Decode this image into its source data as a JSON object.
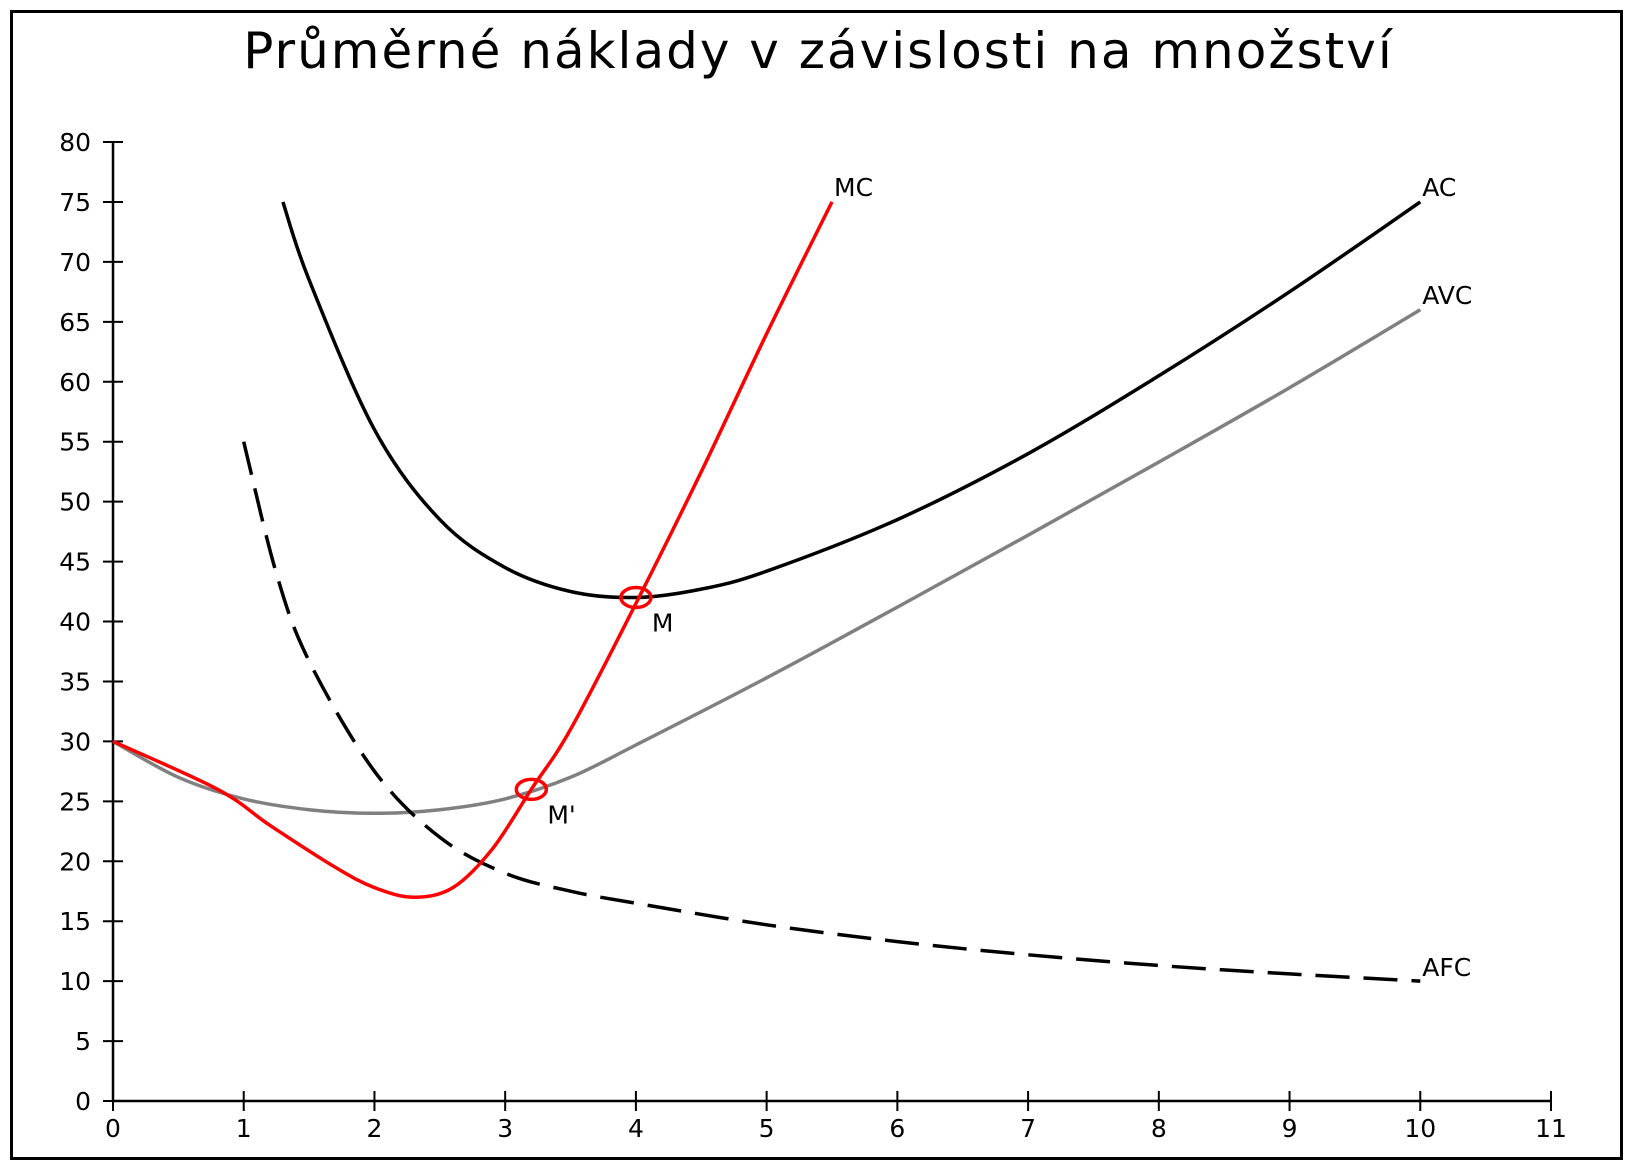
{
  "chart_data": {
    "type": "line",
    "title": "Průměrné náklady v závislosti na množství",
    "xlabel": "",
    "ylabel": "",
    "xlim": [
      0,
      11
    ],
    "ylim": [
      0,
      80
    ],
    "x_ticks": [
      "0",
      "1",
      "2",
      "3",
      "4",
      "5",
      "6",
      "7",
      "8",
      "9",
      "10",
      "11"
    ],
    "y_ticks": [
      "0",
      "5",
      "10",
      "15",
      "20",
      "25",
      "30",
      "35",
      "40",
      "45",
      "50",
      "55",
      "60",
      "65",
      "70",
      "75",
      "80"
    ],
    "grid": false,
    "series": [
      {
        "name": "MC",
        "color": "#ff0000",
        "style": "solid",
        "points": [
          [
            0,
            30
          ],
          [
            0.8,
            26
          ],
          [
            1.2,
            23
          ],
          [
            1.7,
            19.5
          ],
          [
            2.0,
            17.8
          ],
          [
            2.3,
            17
          ],
          [
            2.6,
            17.8
          ],
          [
            2.9,
            21
          ],
          [
            3.2,
            26
          ],
          [
            3.5,
            31
          ],
          [
            4.0,
            41.5
          ],
          [
            4.5,
            52.5
          ],
          [
            5.0,
            64
          ],
          [
            5.5,
            75
          ]
        ]
      },
      {
        "name": "AC",
        "color": "#000000",
        "style": "solid",
        "points": [
          [
            1.3,
            75
          ],
          [
            1.5,
            68.5
          ],
          [
            2.0,
            56
          ],
          [
            2.5,
            48.5
          ],
          [
            3.0,
            44.5
          ],
          [
            3.5,
            42.5
          ],
          [
            4.0,
            42
          ],
          [
            4.5,
            42.7
          ],
          [
            5.0,
            44.2
          ],
          [
            6.0,
            48.5
          ],
          [
            7.0,
            54
          ],
          [
            8.0,
            60.5
          ],
          [
            9.0,
            67.5
          ],
          [
            10.0,
            75
          ]
        ]
      },
      {
        "name": "AVC",
        "color": "#808080",
        "style": "solid",
        "points": [
          [
            0,
            30
          ],
          [
            0.5,
            27
          ],
          [
            1.0,
            25.2
          ],
          [
            1.5,
            24.3
          ],
          [
            2.0,
            24
          ],
          [
            2.5,
            24.3
          ],
          [
            3.0,
            25.2
          ],
          [
            3.5,
            27
          ],
          [
            4.0,
            29.7
          ],
          [
            5.0,
            35.3
          ],
          [
            6.0,
            41.2
          ],
          [
            7.0,
            47.2
          ],
          [
            8.0,
            53.3
          ],
          [
            9.0,
            59.5
          ],
          [
            10.0,
            66
          ]
        ]
      },
      {
        "name": "AFC",
        "color": "#000000",
        "style": "dashed",
        "points": [
          [
            1.0,
            55
          ],
          [
            1.25,
            44
          ],
          [
            1.5,
            36.7
          ],
          [
            2.0,
            27.5
          ],
          [
            2.5,
            22
          ],
          [
            3.0,
            19
          ],
          [
            3.5,
            17.5
          ],
          [
            4.0,
            16.5
          ],
          [
            5.0,
            14.7
          ],
          [
            6.0,
            13.3
          ],
          [
            7.0,
            12.2
          ],
          [
            8.0,
            11.3
          ],
          [
            9.0,
            10.6
          ],
          [
            10.0,
            10
          ]
        ]
      }
    ],
    "points": [
      {
        "name": "M",
        "x": 4.0,
        "y": 42,
        "color": "#ff0000"
      },
      {
        "name": "M'",
        "x": 3.2,
        "y": 26,
        "color": "#ff0000"
      }
    ]
  }
}
